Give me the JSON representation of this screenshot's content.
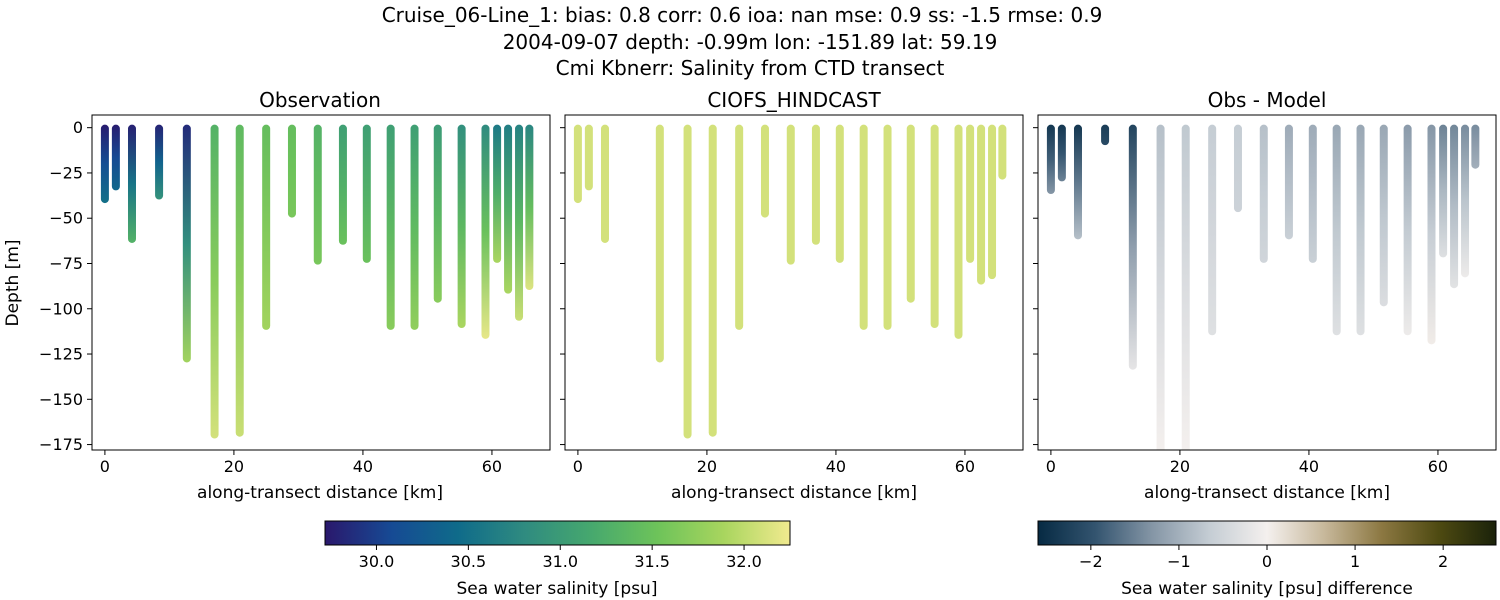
{
  "figure": {
    "title_lines": [
      "Cruise_06-Line_1: bias: 0.8  corr: 0.6  ioa: nan  mse: 0.9  ss: -1.5  rmse: 0.9",
      "2004-09-07 depth: -0.99m lon: -151.89 lat: 59.19",
      "Cmi Kbnerr: Salinity from CTD transect"
    ]
  },
  "colors": {
    "haline": [
      "#2a186c",
      "#164a94",
      "#0f6b8a",
      "#2f8b80",
      "#46a86e",
      "#6dc35a",
      "#a8d55e",
      "#f1ea8f"
    ],
    "diff": [
      "#062a43",
      "#33546f",
      "#8596a6",
      "#c5cdd4",
      "#f4f0ee",
      "#c7b89b",
      "#8c7842",
      "#4e4a11",
      "#1a220a"
    ]
  },
  "chart_data": [
    {
      "type": "scatter",
      "title": "Observation",
      "xlabel": "along-transect distance [km]",
      "ylabel": "Depth [m]",
      "xlim": [
        -2,
        69
      ],
      "ylim": [
        -178,
        7
      ],
      "xticks": [
        0,
        20,
        40,
        60
      ],
      "yticks": [
        0,
        -25,
        -50,
        -75,
        -100,
        -125,
        -150,
        -175
      ],
      "show_y_tick_labels": true,
      "colormap": "haline",
      "vmin": 29.72,
      "vmax": 32.25,
      "stations": [
        {
          "x": 0.0,
          "max_depth": -40,
          "top": 29.75,
          "bottom": 30.5
        },
        {
          "x": 1.7,
          "max_depth": -33,
          "top": 29.75,
          "bottom": 30.4
        },
        {
          "x": 4.2,
          "max_depth": -62,
          "top": 29.78,
          "bottom": 31.3
        },
        {
          "x": 8.4,
          "max_depth": -38,
          "top": 29.8,
          "bottom": 30.9
        },
        {
          "x": 12.7,
          "max_depth": -128,
          "top": 29.85,
          "bottom": 31.85
        },
        {
          "x": 17.0,
          "max_depth": -170,
          "top": 31.3,
          "bottom": 32.1
        },
        {
          "x": 20.9,
          "max_depth": -169,
          "top": 31.4,
          "bottom": 32.05
        },
        {
          "x": 25.0,
          "max_depth": -110,
          "top": 31.45,
          "bottom": 31.85
        },
        {
          "x": 29.0,
          "max_depth": -48,
          "top": 31.45,
          "bottom": 31.6
        },
        {
          "x": 33.0,
          "max_depth": -74,
          "top": 31.3,
          "bottom": 31.6
        },
        {
          "x": 36.9,
          "max_depth": -63,
          "top": 31.05,
          "bottom": 31.5
        },
        {
          "x": 40.6,
          "max_depth": -73,
          "top": 31.05,
          "bottom": 31.5
        },
        {
          "x": 44.3,
          "max_depth": -110,
          "top": 31.05,
          "bottom": 31.7
        },
        {
          "x": 48.0,
          "max_depth": -110,
          "top": 31.05,
          "bottom": 31.75
        },
        {
          "x": 51.6,
          "max_depth": -95,
          "top": 31.0,
          "bottom": 31.7
        },
        {
          "x": 55.3,
          "max_depth": -109,
          "top": 30.85,
          "bottom": 31.9
        },
        {
          "x": 59.0,
          "max_depth": -115,
          "top": 30.8,
          "bottom": 32.2
        },
        {
          "x": 60.8,
          "max_depth": -73,
          "top": 30.6,
          "bottom": 31.9
        },
        {
          "x": 62.5,
          "max_depth": -90,
          "top": 30.65,
          "bottom": 31.9
        },
        {
          "x": 64.2,
          "max_depth": -105,
          "top": 30.7,
          "bottom": 32.05
        },
        {
          "x": 65.8,
          "max_depth": -88,
          "top": 30.75,
          "bottom": 32.15
        }
      ]
    },
    {
      "type": "scatter",
      "title": "CIOFS_HINDCAST",
      "xlabel": "along-transect distance [km]",
      "xlim": [
        -2,
        69
      ],
      "ylim": [
        -178,
        7
      ],
      "xticks": [
        0,
        20,
        40,
        60
      ],
      "yticks": [
        0,
        -25,
        -50,
        -75,
        -100,
        -125,
        -150,
        -175
      ],
      "show_y_tick_labels": false,
      "colormap": "haline",
      "vmin": 29.72,
      "vmax": 32.25,
      "stations": [
        {
          "x": 0.0,
          "max_depth": -40,
          "top": 32.1,
          "bottom": 32.1
        },
        {
          "x": 1.7,
          "max_depth": -33,
          "top": 32.1,
          "bottom": 32.1
        },
        {
          "x": 4.2,
          "max_depth": -62,
          "top": 32.1,
          "bottom": 32.1
        },
        {
          "x": 12.7,
          "max_depth": -128,
          "top": 32.1,
          "bottom": 32.1
        },
        {
          "x": 17.0,
          "max_depth": -170,
          "top": 32.1,
          "bottom": 32.1
        },
        {
          "x": 20.9,
          "max_depth": -169,
          "top": 32.1,
          "bottom": 32.1
        },
        {
          "x": 25.0,
          "max_depth": -110,
          "top": 32.1,
          "bottom": 32.1
        },
        {
          "x": 29.0,
          "max_depth": -48,
          "top": 32.1,
          "bottom": 32.1
        },
        {
          "x": 33.0,
          "max_depth": -74,
          "top": 32.1,
          "bottom": 32.1
        },
        {
          "x": 36.9,
          "max_depth": -63,
          "top": 32.1,
          "bottom": 32.1
        },
        {
          "x": 40.6,
          "max_depth": -73,
          "top": 32.1,
          "bottom": 32.1
        },
        {
          "x": 44.3,
          "max_depth": -110,
          "top": 32.1,
          "bottom": 32.1
        },
        {
          "x": 48.0,
          "max_depth": -110,
          "top": 32.1,
          "bottom": 32.1
        },
        {
          "x": 51.6,
          "max_depth": -95,
          "top": 32.1,
          "bottom": 32.1
        },
        {
          "x": 55.3,
          "max_depth": -109,
          "top": 32.1,
          "bottom": 32.1
        },
        {
          "x": 59.0,
          "max_depth": -115,
          "top": 32.1,
          "bottom": 32.1
        },
        {
          "x": 60.8,
          "max_depth": -73,
          "top": 32.1,
          "bottom": 32.1
        },
        {
          "x": 62.5,
          "max_depth": -85,
          "top": 32.1,
          "bottom": 32.1
        },
        {
          "x": 64.2,
          "max_depth": -82,
          "top": 32.1,
          "bottom": 32.1
        },
        {
          "x": 65.8,
          "max_depth": -27,
          "top": 32.1,
          "bottom": 32.1
        }
      ]
    },
    {
      "type": "scatter",
      "title": "Obs - Model",
      "xlabel": "along-transect distance [km]",
      "xlim": [
        -2,
        69
      ],
      "ylim": [
        -178,
        7
      ],
      "xticks": [
        0,
        20,
        40,
        60
      ],
      "yticks": [
        0,
        -25,
        -50,
        -75,
        -100,
        -125,
        -150,
        -175
      ],
      "show_y_tick_labels": false,
      "colormap": "diff",
      "vmin": -2.6,
      "vmax": 2.6,
      "stations": [
        {
          "x": 0.0,
          "max_depth": -35,
          "top": -2.4,
          "bottom": -1.3
        },
        {
          "x": 1.7,
          "max_depth": -28,
          "top": -2.4,
          "bottom": -1.5
        },
        {
          "x": 4.2,
          "max_depth": -60,
          "top": -2.4,
          "bottom": -0.8
        },
        {
          "x": 8.4,
          "max_depth": -8,
          "top": -2.3,
          "bottom": -2.1
        },
        {
          "x": 12.7,
          "max_depth": -132,
          "top": -2.2,
          "bottom": -0.2
        },
        {
          "x": 17.0,
          "max_depth": -178,
          "top": -0.8,
          "bottom": 0.0
        },
        {
          "x": 20.9,
          "max_depth": -178,
          "top": -0.7,
          "bottom": 0.0
        },
        {
          "x": 25.0,
          "max_depth": -113,
          "top": -0.65,
          "bottom": -0.3
        },
        {
          "x": 29.0,
          "max_depth": -45,
          "top": -0.65,
          "bottom": -0.55
        },
        {
          "x": 33.0,
          "max_depth": -73,
          "top": -0.8,
          "bottom": -0.5
        },
        {
          "x": 36.9,
          "max_depth": -60,
          "top": -1.05,
          "bottom": -0.6
        },
        {
          "x": 40.6,
          "max_depth": -73,
          "top": -1.05,
          "bottom": -0.6
        },
        {
          "x": 44.3,
          "max_depth": -113,
          "top": -1.1,
          "bottom": -0.3
        },
        {
          "x": 48.0,
          "max_depth": -113,
          "top": -1.1,
          "bottom": -0.3
        },
        {
          "x": 51.6,
          "max_depth": -97,
          "top": -1.1,
          "bottom": -0.35
        },
        {
          "x": 55.3,
          "max_depth": -113,
          "top": -1.25,
          "bottom": -0.1
        },
        {
          "x": 59.0,
          "max_depth": -118,
          "top": -1.3,
          "bottom": 0.05
        },
        {
          "x": 60.8,
          "max_depth": -70,
          "top": -1.5,
          "bottom": -0.3
        },
        {
          "x": 62.5,
          "max_depth": -87,
          "top": -1.45,
          "bottom": -0.25
        },
        {
          "x": 64.2,
          "max_depth": -81,
          "top": -1.4,
          "bottom": -0.1
        },
        {
          "x": 65.8,
          "max_depth": -21,
          "top": -1.4,
          "bottom": -1.0
        }
      ]
    }
  ],
  "colorbars": [
    {
      "label": "Sea water salinity [psu]",
      "colormap": "haline",
      "vmin": 29.72,
      "vmax": 32.25,
      "ticks": [
        30.0,
        30.5,
        31.0,
        31.5,
        32.0
      ],
      "tick_labels": [
        "30.0",
        "30.5",
        "31.0",
        "31.5",
        "32.0"
      ]
    },
    {
      "label": "Sea water salinity [psu] difference",
      "colormap": "diff",
      "vmin": -2.6,
      "vmax": 2.6,
      "ticks": [
        -2,
        -1,
        0,
        1,
        2
      ],
      "tick_labels": [
        "−2",
        "−1",
        "0",
        "1",
        "2"
      ]
    }
  ]
}
